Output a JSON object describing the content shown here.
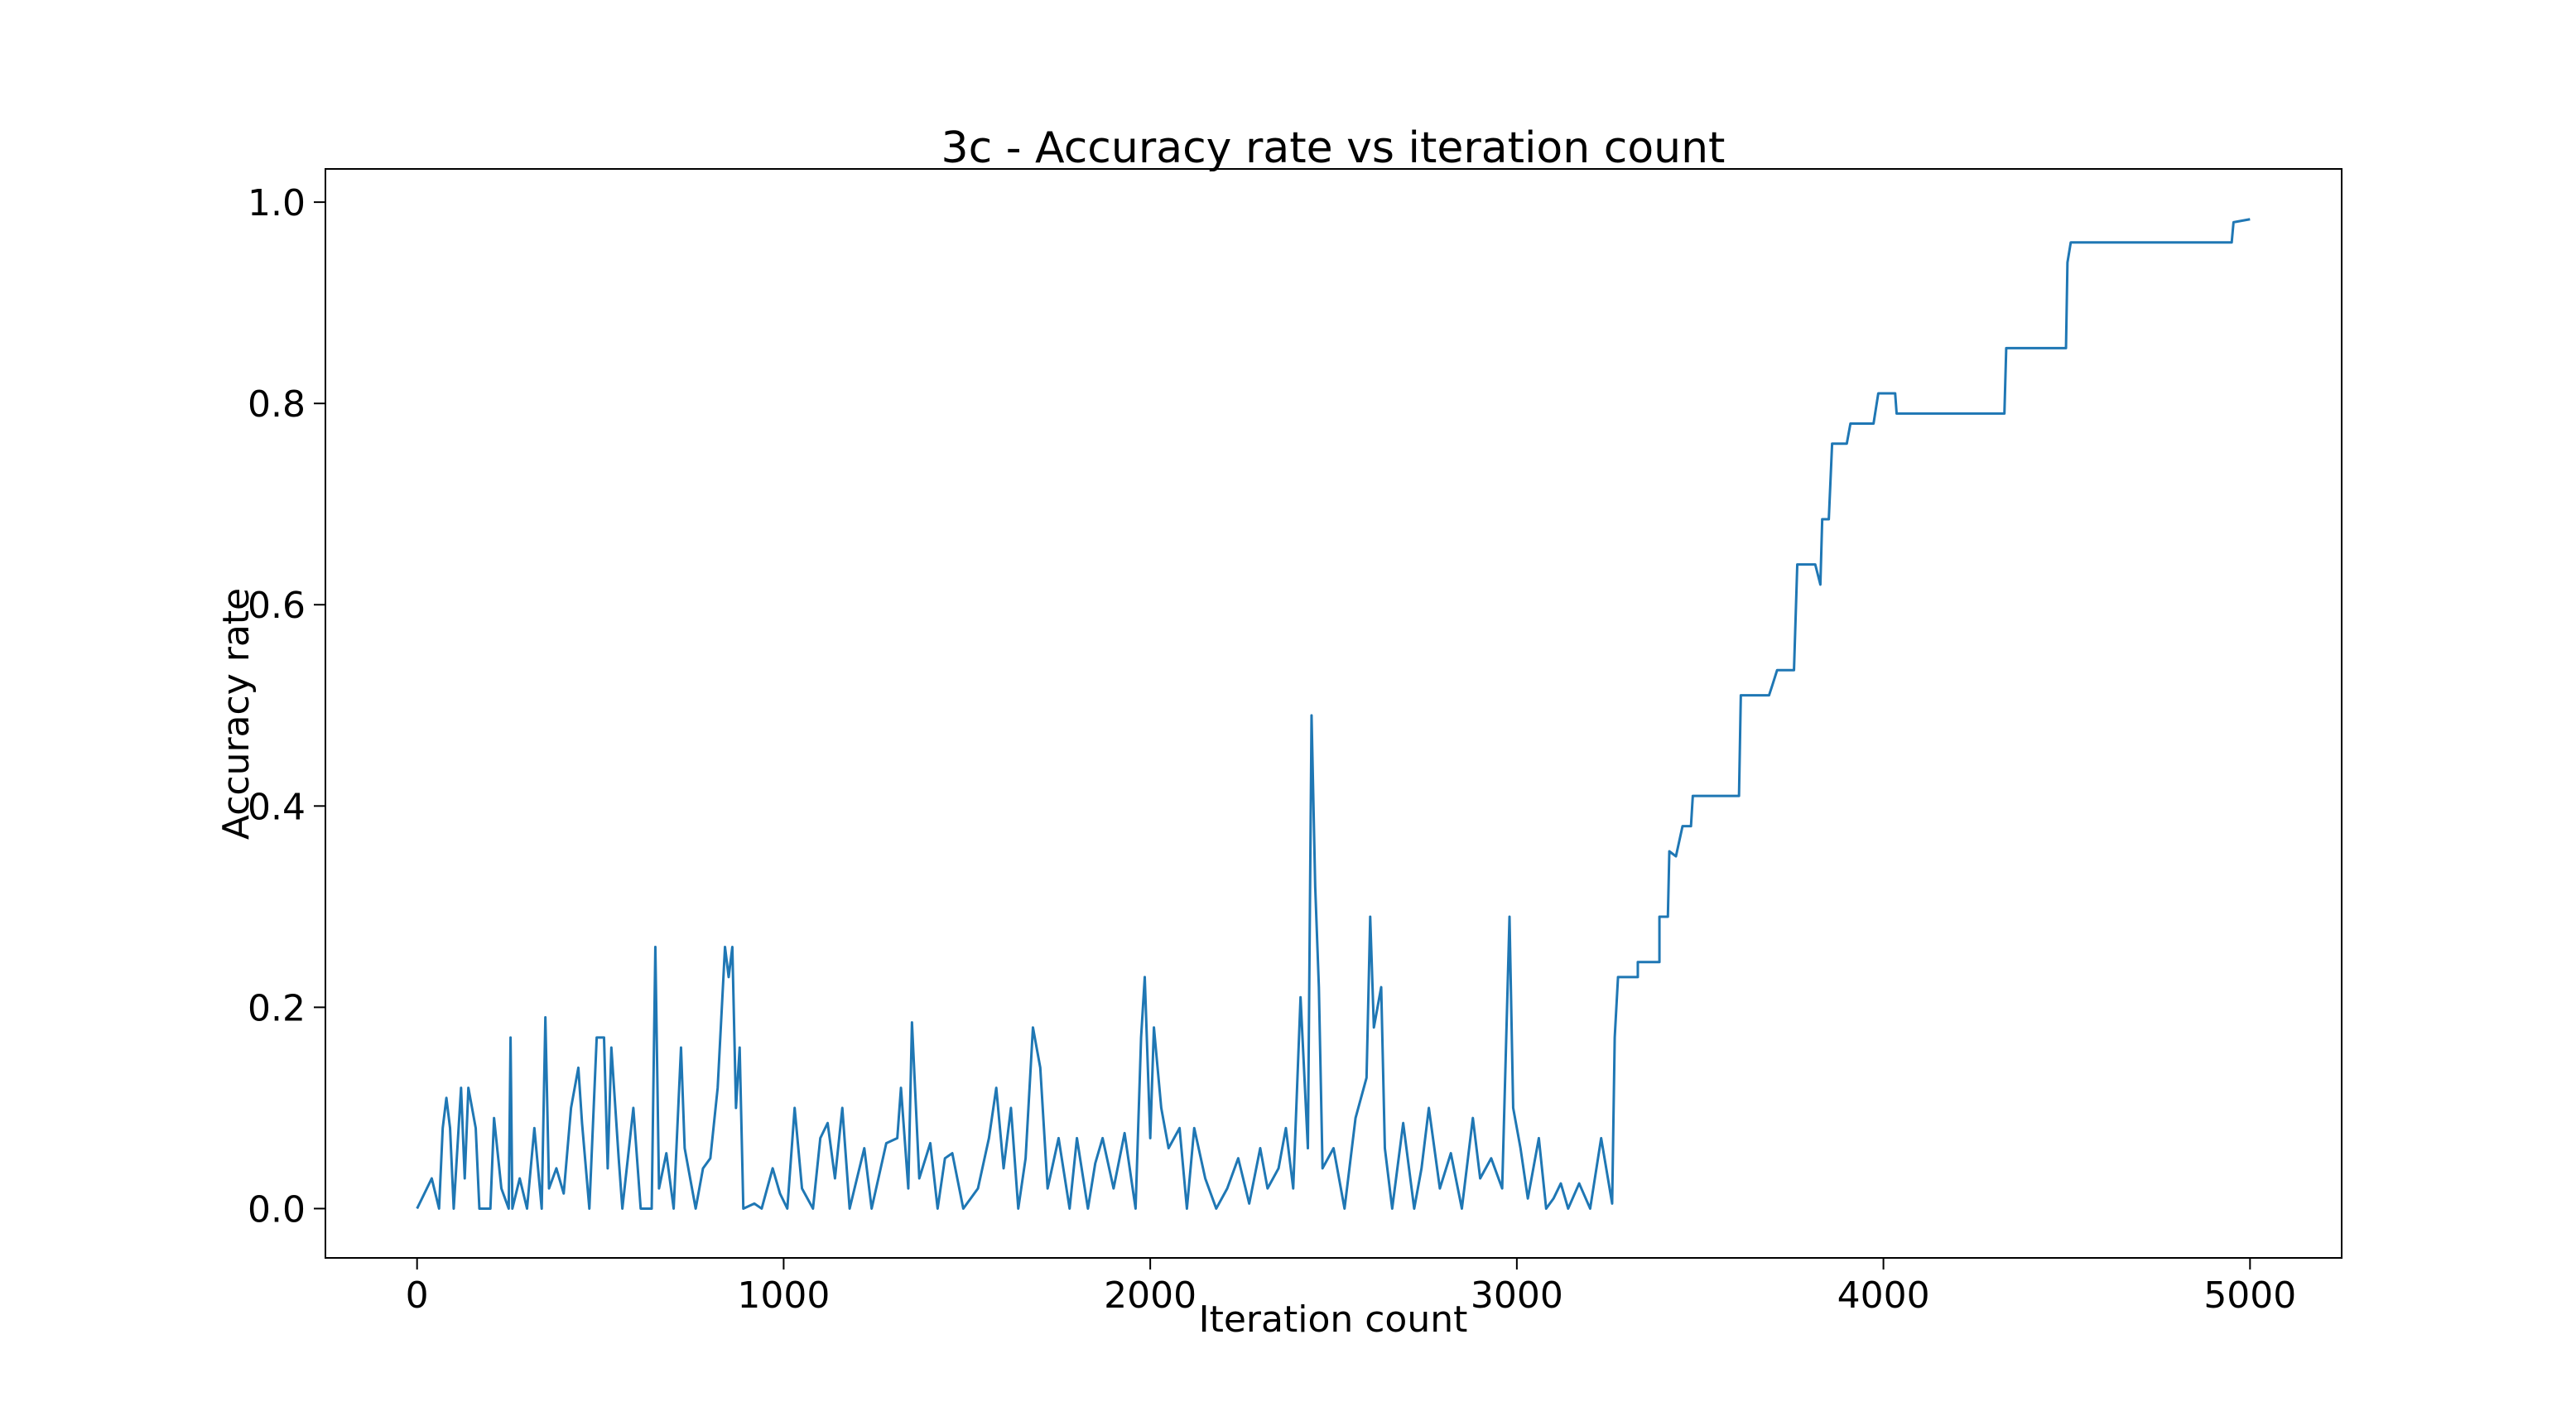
{
  "chart_data": {
    "type": "line",
    "title": "3c - Accuracy rate vs iteration count",
    "x_label": "Iteration count",
    "y_label": "Accuracy rate",
    "xlim": [
      -250,
      5250
    ],
    "ylim": [
      -0.049,
      1.033
    ],
    "xticks": [
      0,
      1000,
      2000,
      3000,
      4000,
      5000
    ],
    "yticks": [
      {
        "value": 0,
        "label": "0.0"
      },
      0.2,
      0.4,
      0.6,
      0.8,
      {
        "value": 1,
        "label": "1.0"
      }
    ],
    "x": [
      0,
      20,
      40,
      60,
      70,
      80,
      90,
      100,
      120,
      130,
      140,
      160,
      170,
      200,
      210,
      230,
      250,
      255,
      260,
      280,
      300,
      320,
      340,
      350,
      360,
      380,
      400,
      420,
      440,
      450,
      470,
      490,
      510,
      520,
      530,
      550,
      560,
      590,
      610,
      640,
      650,
      660,
      680,
      700,
      720,
      730,
      760,
      780,
      800,
      820,
      840,
      850,
      860,
      870,
      880,
      890,
      920,
      940,
      970,
      990,
      1010,
      1030,
      1050,
      1080,
      1100,
      1120,
      1140,
      1160,
      1180,
      1220,
      1240,
      1280,
      1310,
      1320,
      1340,
      1350,
      1370,
      1400,
      1420,
      1440,
      1460,
      1490,
      1530,
      1560,
      1580,
      1600,
      1620,
      1640,
      1660,
      1680,
      1700,
      1720,
      1750,
      1780,
      1800,
      1830,
      1850,
      1870,
      1900,
      1930,
      1960,
      1975,
      1985,
      2000,
      2010,
      2030,
      2050,
      2080,
      2100,
      2120,
      2150,
      2180,
      2210,
      2240,
      2270,
      2300,
      2320,
      2350,
      2370,
      2390,
      2410,
      2430,
      2440,
      2450,
      2460,
      2470,
      2500,
      2530,
      2560,
      2590,
      2600,
      2610,
      2630,
      2640,
      2660,
      2690,
      2720,
      2740,
      2760,
      2790,
      2820,
      2850,
      2880,
      2900,
      2930,
      2960,
      2980,
      2990,
      3010,
      3030,
      3060,
      3080,
      3100,
      3120,
      3140,
      3170,
      3200,
      3230,
      3260,
      3267,
      3276,
      3330,
      3330,
      3389,
      3389,
      3412,
      3416,
      3434,
      3452,
      3475,
      3480,
      3606,
      3611,
      3688,
      3697,
      3710,
      3756,
      3765,
      3814,
      3828,
      3833,
      3851,
      3860,
      3900,
      3910,
      3973,
      3986,
      4032,
      4036,
      4330,
      4335,
      4498,
      4502,
      4511,
      4950,
      4955,
      5000
    ],
    "series": [
      {
        "name": "Accuracy rate",
        "color": "#1f77b4",
        "values": [
          0,
          0.015,
          0.03,
          0,
          0.08,
          0.11,
          0.08,
          0,
          0.12,
          0.03,
          0.12,
          0.08,
          0,
          0,
          0.09,
          0.02,
          0,
          0.17,
          0,
          0.03,
          0,
          0.08,
          0,
          0.19,
          0.02,
          0.04,
          0.015,
          0.1,
          0.14,
          0.085,
          0,
          0.17,
          0.17,
          0.04,
          0.16,
          0.05,
          0,
          0.1,
          0,
          0,
          0.26,
          0.02,
          0.055,
          0,
          0.16,
          0.06,
          0,
          0.04,
          0.05,
          0.12,
          0.26,
          0.23,
          0.26,
          0.1,
          0.16,
          0,
          0.005,
          0,
          0.04,
          0.015,
          0,
          0.1,
          0.02,
          0,
          0.07,
          0.085,
          0.03,
          0.1,
          0,
          0.06,
          0,
          0.065,
          0.07,
          0.12,
          0.02,
          0.185,
          0.03,
          0.065,
          0,
          0.05,
          0.055,
          0,
          0.02,
          0.07,
          0.12,
          0.04,
          0.1,
          0,
          0.05,
          0.18,
          0.14,
          0.02,
          0.07,
          0,
          0.07,
          0,
          0.045,
          0.07,
          0.02,
          0.075,
          0,
          0.17,
          0.23,
          0.07,
          0.18,
          0.1,
          0.06,
          0.08,
          0,
          0.08,
          0.03,
          0,
          0.02,
          0.05,
          0.005,
          0.06,
          0.02,
          0.04,
          0.08,
          0.02,
          0.21,
          0.06,
          0.49,
          0.32,
          0.22,
          0.04,
          0.06,
          0,
          0.09,
          0.13,
          0.29,
          0.18,
          0.22,
          0.06,
          0,
          0.085,
          0,
          0.04,
          0.1,
          0.02,
          0.055,
          0,
          0.09,
          0.03,
          0.05,
          0.02,
          0.29,
          0.1,
          0.06,
          0.01,
          0.07,
          0,
          0.01,
          0.025,
          0,
          0.025,
          0,
          0.07,
          0.005,
          0.17,
          0.23,
          0.23,
          0.245,
          0.245,
          0.29,
          0.29,
          0.355,
          0.35,
          0.38,
          0.38,
          0.41,
          0.41,
          0.51,
          0.51,
          0.52,
          0.535,
          0.535,
          0.64,
          0.64,
          0.62,
          0.685,
          0.685,
          0.76,
          0.76,
          0.78,
          0.78,
          0.81,
          0.81,
          0.79,
          0.79,
          0.855,
          0.855,
          0.94,
          0.96,
          0.96,
          0.98,
          0.983
        ]
      }
    ]
  }
}
